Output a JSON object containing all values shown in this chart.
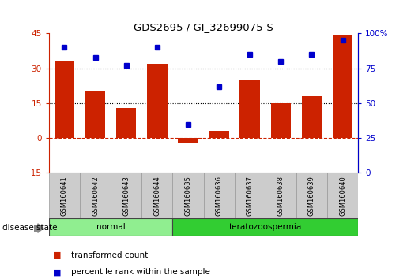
{
  "title": "GDS2695 / GI_32699075-S",
  "samples": [
    "GSM160641",
    "GSM160642",
    "GSM160643",
    "GSM160644",
    "GSM160635",
    "GSM160636",
    "GSM160637",
    "GSM160638",
    "GSM160639",
    "GSM160640"
  ],
  "bar_values": [
    33,
    20,
    13,
    32,
    -2,
    3,
    25,
    15,
    18,
    44
  ],
  "percentile_values": [
    90,
    83,
    77,
    90,
    35,
    62,
    85,
    80,
    85,
    95
  ],
  "bar_color": "#CC2200",
  "dot_color": "#0000CC",
  "left_ylim": [
    -15,
    45
  ],
  "right_ylim": [
    0,
    100
  ],
  "left_yticks": [
    -15,
    0,
    15,
    30,
    45
  ],
  "right_yticks": [
    0,
    25,
    50,
    75,
    100
  ],
  "right_yticklabels": [
    "0",
    "25",
    "50",
    "75",
    "100%"
  ],
  "hlines": [
    15,
    30
  ],
  "zero_line_color": "#CC2200",
  "hline_color": "#000000",
  "groups": [
    {
      "label": "normal",
      "indices": [
        0,
        1,
        2,
        3
      ],
      "color": "#90EE90"
    },
    {
      "label": "teratozoospermia",
      "indices": [
        4,
        5,
        6,
        7,
        8,
        9
      ],
      "color": "#32CD32"
    }
  ],
  "disease_state_label": "disease state",
  "legend_bar_label": "transformed count",
  "legend_dot_label": "percentile rank within the sample",
  "background_color": "#FFFFFF",
  "plot_bg_color": "#FFFFFF",
  "label_box_color": "#CCCCCC",
  "label_box_edge": "#999999"
}
